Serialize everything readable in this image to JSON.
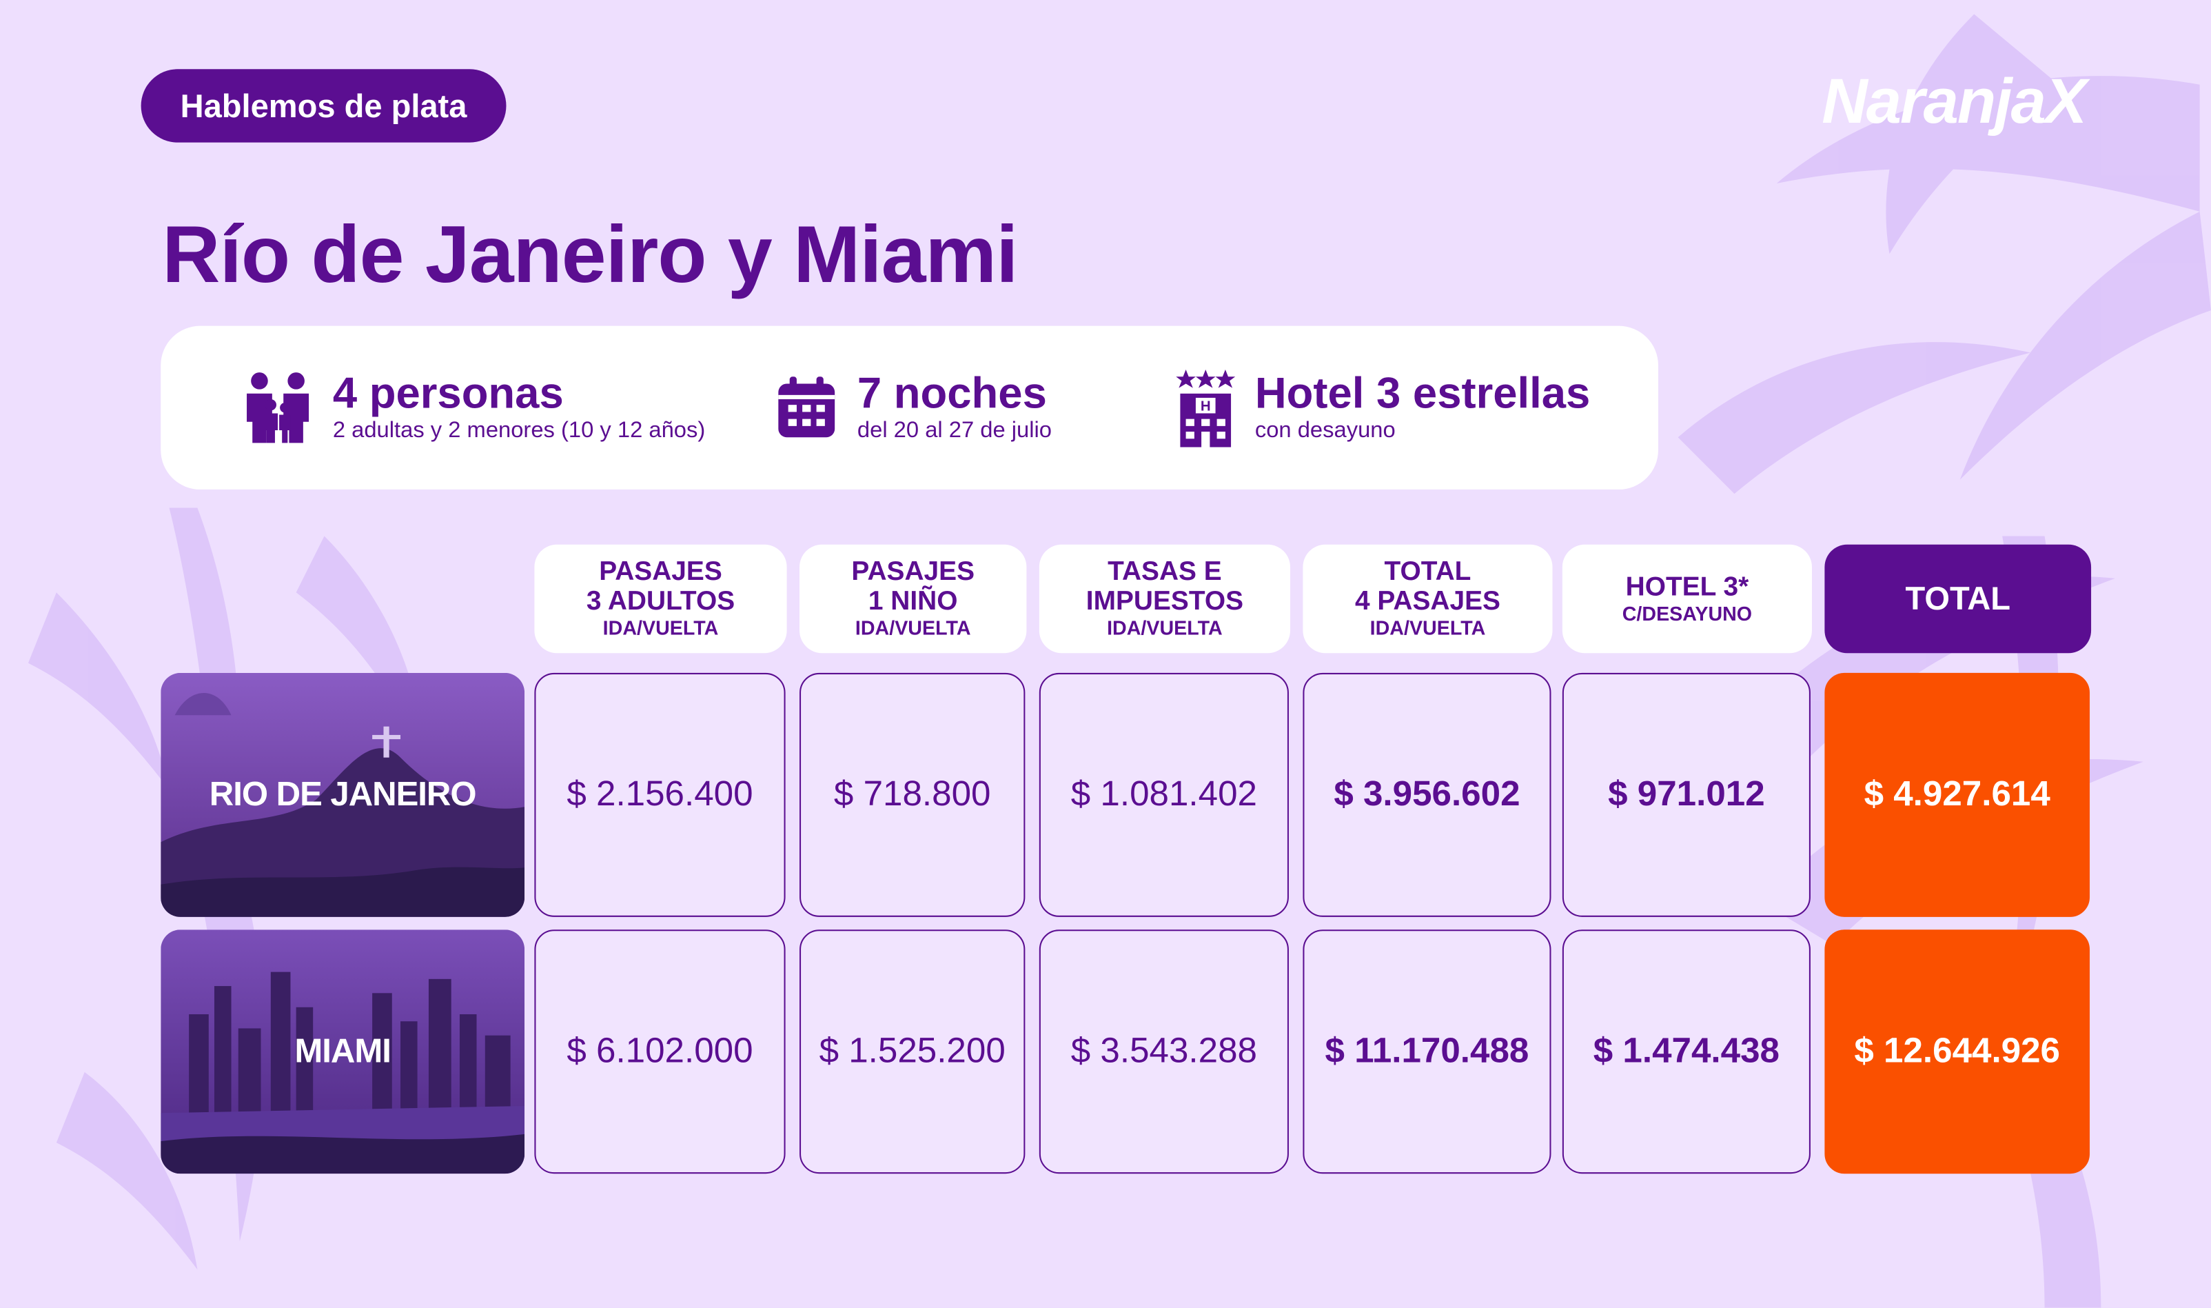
{
  "tag_label": "Hablemos de plata",
  "brand": "NaranjaX",
  "title": "Río de Janeiro y Miami",
  "info": {
    "people": {
      "main": "4 personas",
      "sub": "2 adultas y 2 menores (10 y 12 años)",
      "icon": "family-icon"
    },
    "nights": {
      "main": "7 noches",
      "sub": "del 20 al 27 de julio",
      "icon": "calendar-icon"
    },
    "hotel": {
      "main": "Hotel 3 estrellas",
      "sub": "con desayuno",
      "icon": "hotel-icon"
    }
  },
  "columns": [
    {
      "line1": "PASAJES",
      "line2": "3 ADULTOS",
      "line3": "IDA/VUELTA"
    },
    {
      "line1": "PASAJES",
      "line2": "1 NIÑO",
      "line3": "IDA/VUELTA"
    },
    {
      "line1": "TASAS E",
      "line2": "IMPUESTOS",
      "line3": "IDA/VUELTA"
    },
    {
      "line1": "TOTAL",
      "line2": "4 PASAJES",
      "line3": "IDA/VUELTA"
    },
    {
      "line1": "HOTEL 3*",
      "line2": "C/DESAYUNO"
    },
    {
      "line1": "TOTAL"
    }
  ],
  "rows": [
    {
      "city": "RIO DE JANEIRO",
      "values": [
        "$ 2.156.400",
        "$ 718.800",
        "$ 1.081.402",
        "$ 3.956.602",
        "$ 971.012",
        "$ 4.927.614"
      ]
    },
    {
      "city": "MIAMI",
      "values": [
        "$ 6.102.000",
        "$ 1.525.200",
        "$ 3.543.288",
        "$ 11.170.488",
        "$ 1.474.438",
        "$ 12.644.926"
      ]
    }
  ],
  "colors": {
    "purple": "#5b0e91",
    "lavender": "#eedffe",
    "orange": "#fa5000"
  }
}
